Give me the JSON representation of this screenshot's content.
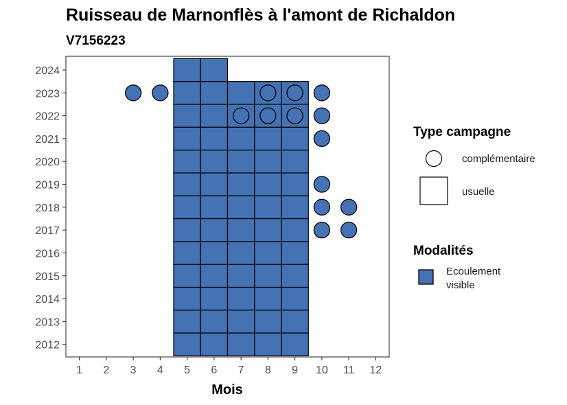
{
  "colors": {
    "fill": "#4472b3",
    "stroke": "#000000",
    "axis_text": "#4d4d4d",
    "background": "#ffffff"
  },
  "chart_data": {
    "type": "scatter",
    "title": "Ruisseau de Marnonflès à l'amont de Richaldon",
    "subtitle": "V7156223",
    "xlabel": "Mois",
    "ylabel": "",
    "x_ticks": [
      "1",
      "2",
      "3",
      "4",
      "5",
      "6",
      "7",
      "8",
      "9",
      "10",
      "11",
      "12"
    ],
    "y_ticks": [
      "2012",
      "2013",
      "2014",
      "2015",
      "2016",
      "2017",
      "2018",
      "2019",
      "2020",
      "2021",
      "2022",
      "2023",
      "2024"
    ],
    "xlim": [
      0.5,
      12.5
    ],
    "ylim": [
      2011.45,
      2024.6
    ],
    "grid": false,
    "legend_position": "right",
    "legends": [
      {
        "title": "Type campagne",
        "items": [
          {
            "label": "complémentaire",
            "shape": "circle"
          },
          {
            "label": "usuelle",
            "shape": "square"
          }
        ]
      },
      {
        "title": "Modalités",
        "items": [
          {
            "label": "Ecoulement\nvisible",
            "line1": "Ecoulement",
            "line2": "visible",
            "color": "#4472b3"
          }
        ]
      }
    ],
    "series": [
      {
        "type_campagne": "usuelle",
        "modalite": "Ecoulement visible",
        "points": [
          [
            5,
            2012
          ],
          [
            6,
            2012
          ],
          [
            7,
            2012
          ],
          [
            8,
            2012
          ],
          [
            9,
            2012
          ],
          [
            5,
            2013
          ],
          [
            6,
            2013
          ],
          [
            7,
            2013
          ],
          [
            8,
            2013
          ],
          [
            9,
            2013
          ],
          [
            5,
            2014
          ],
          [
            6,
            2014
          ],
          [
            7,
            2014
          ],
          [
            8,
            2014
          ],
          [
            9,
            2014
          ],
          [
            5,
            2015
          ],
          [
            6,
            2015
          ],
          [
            7,
            2015
          ],
          [
            8,
            2015
          ],
          [
            9,
            2015
          ],
          [
            5,
            2016
          ],
          [
            6,
            2016
          ],
          [
            7,
            2016
          ],
          [
            8,
            2016
          ],
          [
            9,
            2016
          ],
          [
            5,
            2017
          ],
          [
            6,
            2017
          ],
          [
            7,
            2017
          ],
          [
            8,
            2017
          ],
          [
            9,
            2017
          ],
          [
            5,
            2018
          ],
          [
            6,
            2018
          ],
          [
            7,
            2018
          ],
          [
            8,
            2018
          ],
          [
            9,
            2018
          ],
          [
            5,
            2019
          ],
          [
            6,
            2019
          ],
          [
            7,
            2019
          ],
          [
            8,
            2019
          ],
          [
            9,
            2019
          ],
          [
            5,
            2020
          ],
          [
            6,
            2020
          ],
          [
            7,
            2020
          ],
          [
            8,
            2020
          ],
          [
            9,
            2020
          ],
          [
            5,
            2021
          ],
          [
            6,
            2021
          ],
          [
            7,
            2021
          ],
          [
            8,
            2021
          ],
          [
            9,
            2021
          ],
          [
            5,
            2022
          ],
          [
            6,
            2022
          ],
          [
            7,
            2022
          ],
          [
            8,
            2022
          ],
          [
            9,
            2022
          ],
          [
            5,
            2023
          ],
          [
            6,
            2023
          ],
          [
            7,
            2023
          ],
          [
            8,
            2023
          ],
          [
            9,
            2023
          ],
          [
            5,
            2024
          ],
          [
            6,
            2024
          ]
        ]
      },
      {
        "type_campagne": "complémentaire",
        "modalite": "Ecoulement visible",
        "points": [
          [
            3,
            2023
          ],
          [
            4,
            2023
          ],
          [
            8,
            2023
          ],
          [
            9,
            2023
          ],
          [
            10,
            2023
          ],
          [
            7,
            2022
          ],
          [
            8,
            2022
          ],
          [
            9,
            2022
          ],
          [
            10,
            2022
          ],
          [
            10,
            2021
          ],
          [
            10,
            2019
          ],
          [
            10,
            2018
          ],
          [
            11,
            2018
          ],
          [
            10,
            2017
          ],
          [
            11,
            2017
          ]
        ]
      }
    ]
  }
}
